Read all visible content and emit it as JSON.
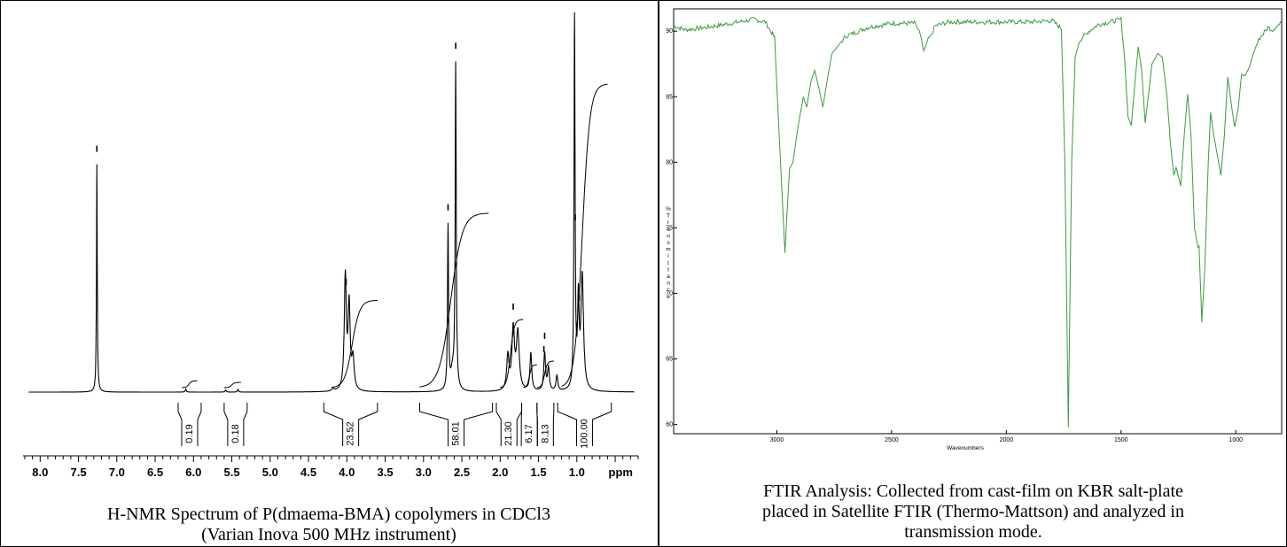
{
  "chart_data": [
    {
      "type": "line",
      "xlabel": "ppm",
      "xlim": [
        8.2,
        0.2
      ],
      "x_ticks": [
        "8.0",
        "7.5",
        "7.0",
        "6.5",
        "6.0",
        "5.5",
        "5.0",
        "4.5",
        "4.0",
        "3.5",
        "3.0",
        "2.5",
        "2.0",
        "1.5",
        "1.0"
      ],
      "caption": [
        "H-NMR Spectrum of P(dmaema-BMA) copolymers in CDCl3",
        "(Varian Inova 500 MHz instrument)"
      ],
      "peaks": [
        {
          "ppm": 7.26,
          "height": 0.6,
          "width": 0.006
        },
        {
          "ppm": 6.1,
          "height": 0.008,
          "width": 0.008
        },
        {
          "ppm": 5.58,
          "height": 0.006,
          "width": 0.008
        },
        {
          "ppm": 5.42,
          "height": 0.007,
          "width": 0.008
        },
        {
          "ppm": 4.18,
          "height": 0.006,
          "width": 0.02
        },
        {
          "ppm": 4.02,
          "height": 0.3,
          "width": 0.016
        },
        {
          "ppm": 3.97,
          "height": 0.22,
          "width": 0.016
        },
        {
          "ppm": 3.92,
          "height": 0.08,
          "width": 0.018
        },
        {
          "ppm": 2.68,
          "height": 0.43,
          "width": 0.008
        },
        {
          "ppm": 2.58,
          "height": 0.85,
          "width": 0.008
        },
        {
          "ppm": 2.62,
          "height": 0.05,
          "width": 0.03
        },
        {
          "ppm": 1.9,
          "height": 0.09,
          "width": 0.018
        },
        {
          "ppm": 1.83,
          "height": 0.16,
          "width": 0.02
        },
        {
          "ppm": 1.77,
          "height": 0.15,
          "width": 0.022
        },
        {
          "ppm": 1.6,
          "height": 0.1,
          "width": 0.014
        },
        {
          "ppm": 1.42,
          "height": 0.1,
          "width": 0.014
        },
        {
          "ppm": 1.37,
          "height": 0.06,
          "width": 0.014
        },
        {
          "ppm": 1.26,
          "height": 0.04,
          "width": 0.014
        },
        {
          "ppm": 1.03,
          "height": 0.99,
          "width": 0.008
        },
        {
          "ppm": 0.98,
          "height": 0.22,
          "width": 0.012
        },
        {
          "ppm": 0.93,
          "height": 0.3,
          "width": 0.02
        }
      ],
      "integral_curves": [
        {
          "start": 6.15,
          "end": 5.95,
          "rise": 0.018
        },
        {
          "start": 5.6,
          "end": 5.38,
          "rise": 0.014
        },
        {
          "start": 4.2,
          "end": 3.6,
          "rise": 0.23
        },
        {
          "start": 3.05,
          "end": 2.15,
          "rise": 0.46
        },
        {
          "start": 2.0,
          "end": 1.7,
          "rise": 0.18
        },
        {
          "start": 1.7,
          "end": 1.52,
          "rise": 0.06
        },
        {
          "start": 1.52,
          "end": 1.3,
          "rise": 0.07
        },
        {
          "start": 1.2,
          "end": 0.6,
          "rise": 0.8
        }
      ],
      "integrals": [
        {
          "start": 6.2,
          "end": 5.9,
          "value": "0.19"
        },
        {
          "start": 5.6,
          "end": 5.3,
          "value": "0.18"
        },
        {
          "start": 4.3,
          "end": 3.6,
          "value": "23.52"
        },
        {
          "start": 3.05,
          "end": 2.1,
          "value": "58.01"
        },
        {
          "start": 2.05,
          "end": 1.72,
          "value": "21.30"
        },
        {
          "start": 1.72,
          "end": 1.52,
          "value": "6.17"
        },
        {
          "start": 1.52,
          "end": 1.3,
          "value": "8.13"
        },
        {
          "start": 1.25,
          "end": 0.55,
          "value": "100.00"
        }
      ],
      "peak_marks": [
        7.26,
        4.01,
        2.68,
        2.58,
        1.83,
        1.43,
        1.42,
        1.02,
        0.97
      ]
    },
    {
      "type": "line",
      "xlabel": "Wavenumbers",
      "ylabel": "%Transmittance",
      "xlim": [
        3450,
        800
      ],
      "ylim": [
        59.3,
        91.7
      ],
      "x_ticks": [
        "3000",
        "2500",
        "2000",
        "1500",
        "1000"
      ],
      "y_ticks": [
        "90",
        "85",
        "80",
        "75",
        "70",
        "65",
        "60"
      ],
      "line_color": "#3c9a3c",
      "caption": [
        "FTIR Analysis: Collected from cast-film on KBR salt-plate",
        "placed in Satellite FTIR (Thermo-Mattson) and analyzed in",
        "transmission mode."
      ],
      "spectrum": [
        [
          3450,
          90.4
        ],
        [
          3400,
          90.1
        ],
        [
          3300,
          90.3
        ],
        [
          3200,
          90.6
        ],
        [
          3100,
          90.9
        ],
        [
          3050,
          90.7
        ],
        [
          3010,
          89.5
        ],
        [
          2990,
          82.0
        ],
        [
          2965,
          73.1
        ],
        [
          2945,
          79.5
        ],
        [
          2930,
          80.0
        ],
        [
          2910,
          82.5
        ],
        [
          2885,
          85.0
        ],
        [
          2870,
          84.2
        ],
        [
          2850,
          86.3
        ],
        [
          2835,
          87.0
        ],
        [
          2815,
          85.5
        ],
        [
          2800,
          84.2
        ],
        [
          2785,
          85.8
        ],
        [
          2760,
          88.3
        ],
        [
          2700,
          89.6
        ],
        [
          2600,
          90.3
        ],
        [
          2500,
          90.6
        ],
        [
          2400,
          90.6
        ],
        [
          2380,
          90.0
        ],
        [
          2360,
          88.5
        ],
        [
          2345,
          89.2
        ],
        [
          2330,
          89.6
        ],
        [
          2310,
          90.4
        ],
        [
          2250,
          90.7
        ],
        [
          2100,
          90.7
        ],
        [
          1900,
          90.7
        ],
        [
          1800,
          90.8
        ],
        [
          1760,
          90.2
        ],
        [
          1745,
          80.0
        ],
        [
          1730,
          59.8
        ],
        [
          1715,
          80.0
        ],
        [
          1700,
          88.0
        ],
        [
          1680,
          89.3
        ],
        [
          1640,
          90.0
        ],
        [
          1600,
          90.5
        ],
        [
          1500,
          90.9
        ],
        [
          1485,
          88.0
        ],
        [
          1470,
          83.5
        ],
        [
          1455,
          82.8
        ],
        [
          1440,
          86.0
        ],
        [
          1425,
          88.8
        ],
        [
          1410,
          87.0
        ],
        [
          1395,
          83.0
        ],
        [
          1385,
          84.5
        ],
        [
          1365,
          87.5
        ],
        [
          1340,
          88.3
        ],
        [
          1320,
          88.0
        ],
        [
          1300,
          85.0
        ],
        [
          1285,
          81.5
        ],
        [
          1270,
          79.0
        ],
        [
          1260,
          79.6
        ],
        [
          1240,
          78.2
        ],
        [
          1225,
          82.0
        ],
        [
          1210,
          85.2
        ],
        [
          1195,
          82.0
        ],
        [
          1180,
          75.0
        ],
        [
          1165,
          73.5
        ],
        [
          1160,
          73.6
        ],
        [
          1148,
          67.8
        ],
        [
          1135,
          72.0
        ],
        [
          1120,
          80.0
        ],
        [
          1110,
          83.8
        ],
        [
          1095,
          82.0
        ],
        [
          1080,
          80.5
        ],
        [
          1065,
          79.0
        ],
        [
          1050,
          82.0
        ],
        [
          1035,
          86.5
        ],
        [
          1020,
          84.5
        ],
        [
          1005,
          82.7
        ],
        [
          990,
          84.0
        ],
        [
          975,
          86.7
        ],
        [
          960,
          86.6
        ],
        [
          940,
          87.3
        ],
        [
          925,
          88.2
        ],
        [
          900,
          89.4
        ],
        [
          880,
          89.8
        ],
        [
          860,
          90.3
        ],
        [
          840,
          90.1
        ],
        [
          820,
          90.4
        ],
        [
          800,
          90.6
        ]
      ]
    }
  ]
}
